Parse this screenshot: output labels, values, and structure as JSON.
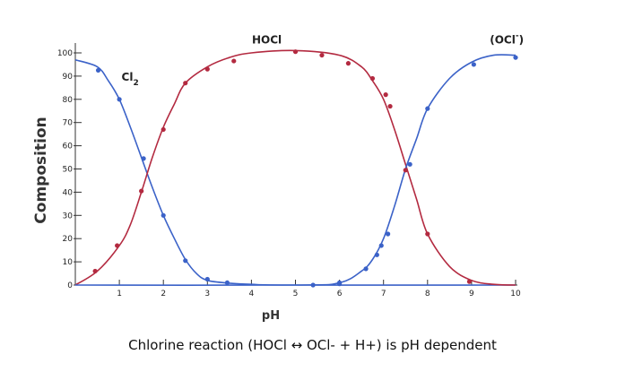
{
  "chart_data": {
    "type": "line",
    "title": "",
    "caption": "Chlorine reaction (HOCl ↔ OCl- + H+) is pH dependent",
    "xlabel": "pH",
    "ylabel": "Composition",
    "xlim": [
      0,
      10
    ],
    "ylim": [
      0,
      100
    ],
    "x_ticks": [
      1,
      2,
      3,
      4,
      5,
      6,
      7,
      8,
      9,
      10
    ],
    "y_ticks": [
      0,
      10,
      20,
      30,
      40,
      50,
      60,
      70,
      80,
      90,
      100
    ],
    "series": [
      {
        "name": "Cl",
        "subscript": "2",
        "color": "#3b62c8",
        "curve": [
          [
            0,
            97
          ],
          [
            0.5,
            94
          ],
          [
            0.75,
            88
          ],
          [
            1,
            80
          ],
          [
            1.25,
            68
          ],
          [
            1.5,
            55
          ],
          [
            1.75,
            42
          ],
          [
            2,
            30
          ],
          [
            2.25,
            20
          ],
          [
            2.5,
            11
          ],
          [
            2.75,
            5
          ],
          [
            3,
            2
          ],
          [
            3.5,
            0.8
          ],
          [
            4,
            0.3
          ],
          [
            5,
            0
          ],
          [
            10,
            0
          ]
        ],
        "points": [
          [
            0.52,
            92.5
          ],
          [
            1,
            80
          ],
          [
            1.55,
            54.5
          ],
          [
            2,
            30
          ],
          [
            2.5,
            10.5
          ],
          [
            3,
            2.5
          ],
          [
            3.45,
            1
          ],
          [
            5.4,
            0
          ],
          [
            6,
            0.5
          ]
        ]
      },
      {
        "name": "HOCl",
        "subscript": "",
        "color": "#b32a40",
        "curve": [
          [
            0,
            0
          ],
          [
            0.5,
            6
          ],
          [
            1,
            17
          ],
          [
            1.25,
            26
          ],
          [
            1.5,
            40
          ],
          [
            1.75,
            55
          ],
          [
            2,
            68
          ],
          [
            2.25,
            78
          ],
          [
            2.5,
            87
          ],
          [
            3,
            94
          ],
          [
            3.5,
            98
          ],
          [
            4,
            100
          ],
          [
            5,
            101
          ],
          [
            6,
            99
          ],
          [
            6.5,
            94
          ],
          [
            6.75,
            88
          ],
          [
            7,
            80
          ],
          [
            7.25,
            67
          ],
          [
            7.5,
            52
          ],
          [
            7.75,
            37
          ],
          [
            8,
            22
          ],
          [
            8.5,
            8
          ],
          [
            9,
            2
          ],
          [
            9.5,
            0.3
          ],
          [
            10,
            0
          ]
        ],
        "points": [
          [
            0.45,
            6
          ],
          [
            0.95,
            17
          ],
          [
            1.5,
            40.5
          ],
          [
            2,
            67
          ],
          [
            2.5,
            87
          ],
          [
            3,
            93
          ],
          [
            3.6,
            96.5
          ],
          [
            5,
            100.5
          ],
          [
            5.6,
            99
          ],
          [
            6.2,
            95.5
          ],
          [
            6.75,
            89
          ],
          [
            7.05,
            82
          ],
          [
            7.15,
            77
          ],
          [
            7.5,
            49.5
          ],
          [
            8,
            22
          ],
          [
            8.95,
            1.5
          ]
        ]
      },
      {
        "name": "(OCl",
        "superscript": "-",
        "close": ")",
        "color": "#3b62c8",
        "curve": [
          [
            0,
            0
          ],
          [
            5,
            0
          ],
          [
            6,
            1
          ],
          [
            6.5,
            6
          ],
          [
            6.75,
            11
          ],
          [
            7,
            20
          ],
          [
            7.25,
            34
          ],
          [
            7.5,
            50
          ],
          [
            7.75,
            63
          ],
          [
            8,
            76
          ],
          [
            8.5,
            89
          ],
          [
            9,
            96
          ],
          [
            9.5,
            99
          ],
          [
            10,
            99
          ]
        ],
        "points": [
          [
            6,
            1
          ],
          [
            6.6,
            7
          ],
          [
            6.85,
            13
          ],
          [
            6.95,
            17
          ],
          [
            7.1,
            22
          ],
          [
            7.6,
            52
          ],
          [
            8,
            76
          ],
          [
            9.05,
            95
          ],
          [
            10,
            98
          ]
        ]
      }
    ],
    "series_labels": [
      {
        "series": 0,
        "at": [
          1.05,
          88
        ]
      },
      {
        "series": 1,
        "at": [
          4.35,
          104
        ]
      },
      {
        "series": 2,
        "at": [
          9.8,
          104
        ]
      }
    ]
  }
}
